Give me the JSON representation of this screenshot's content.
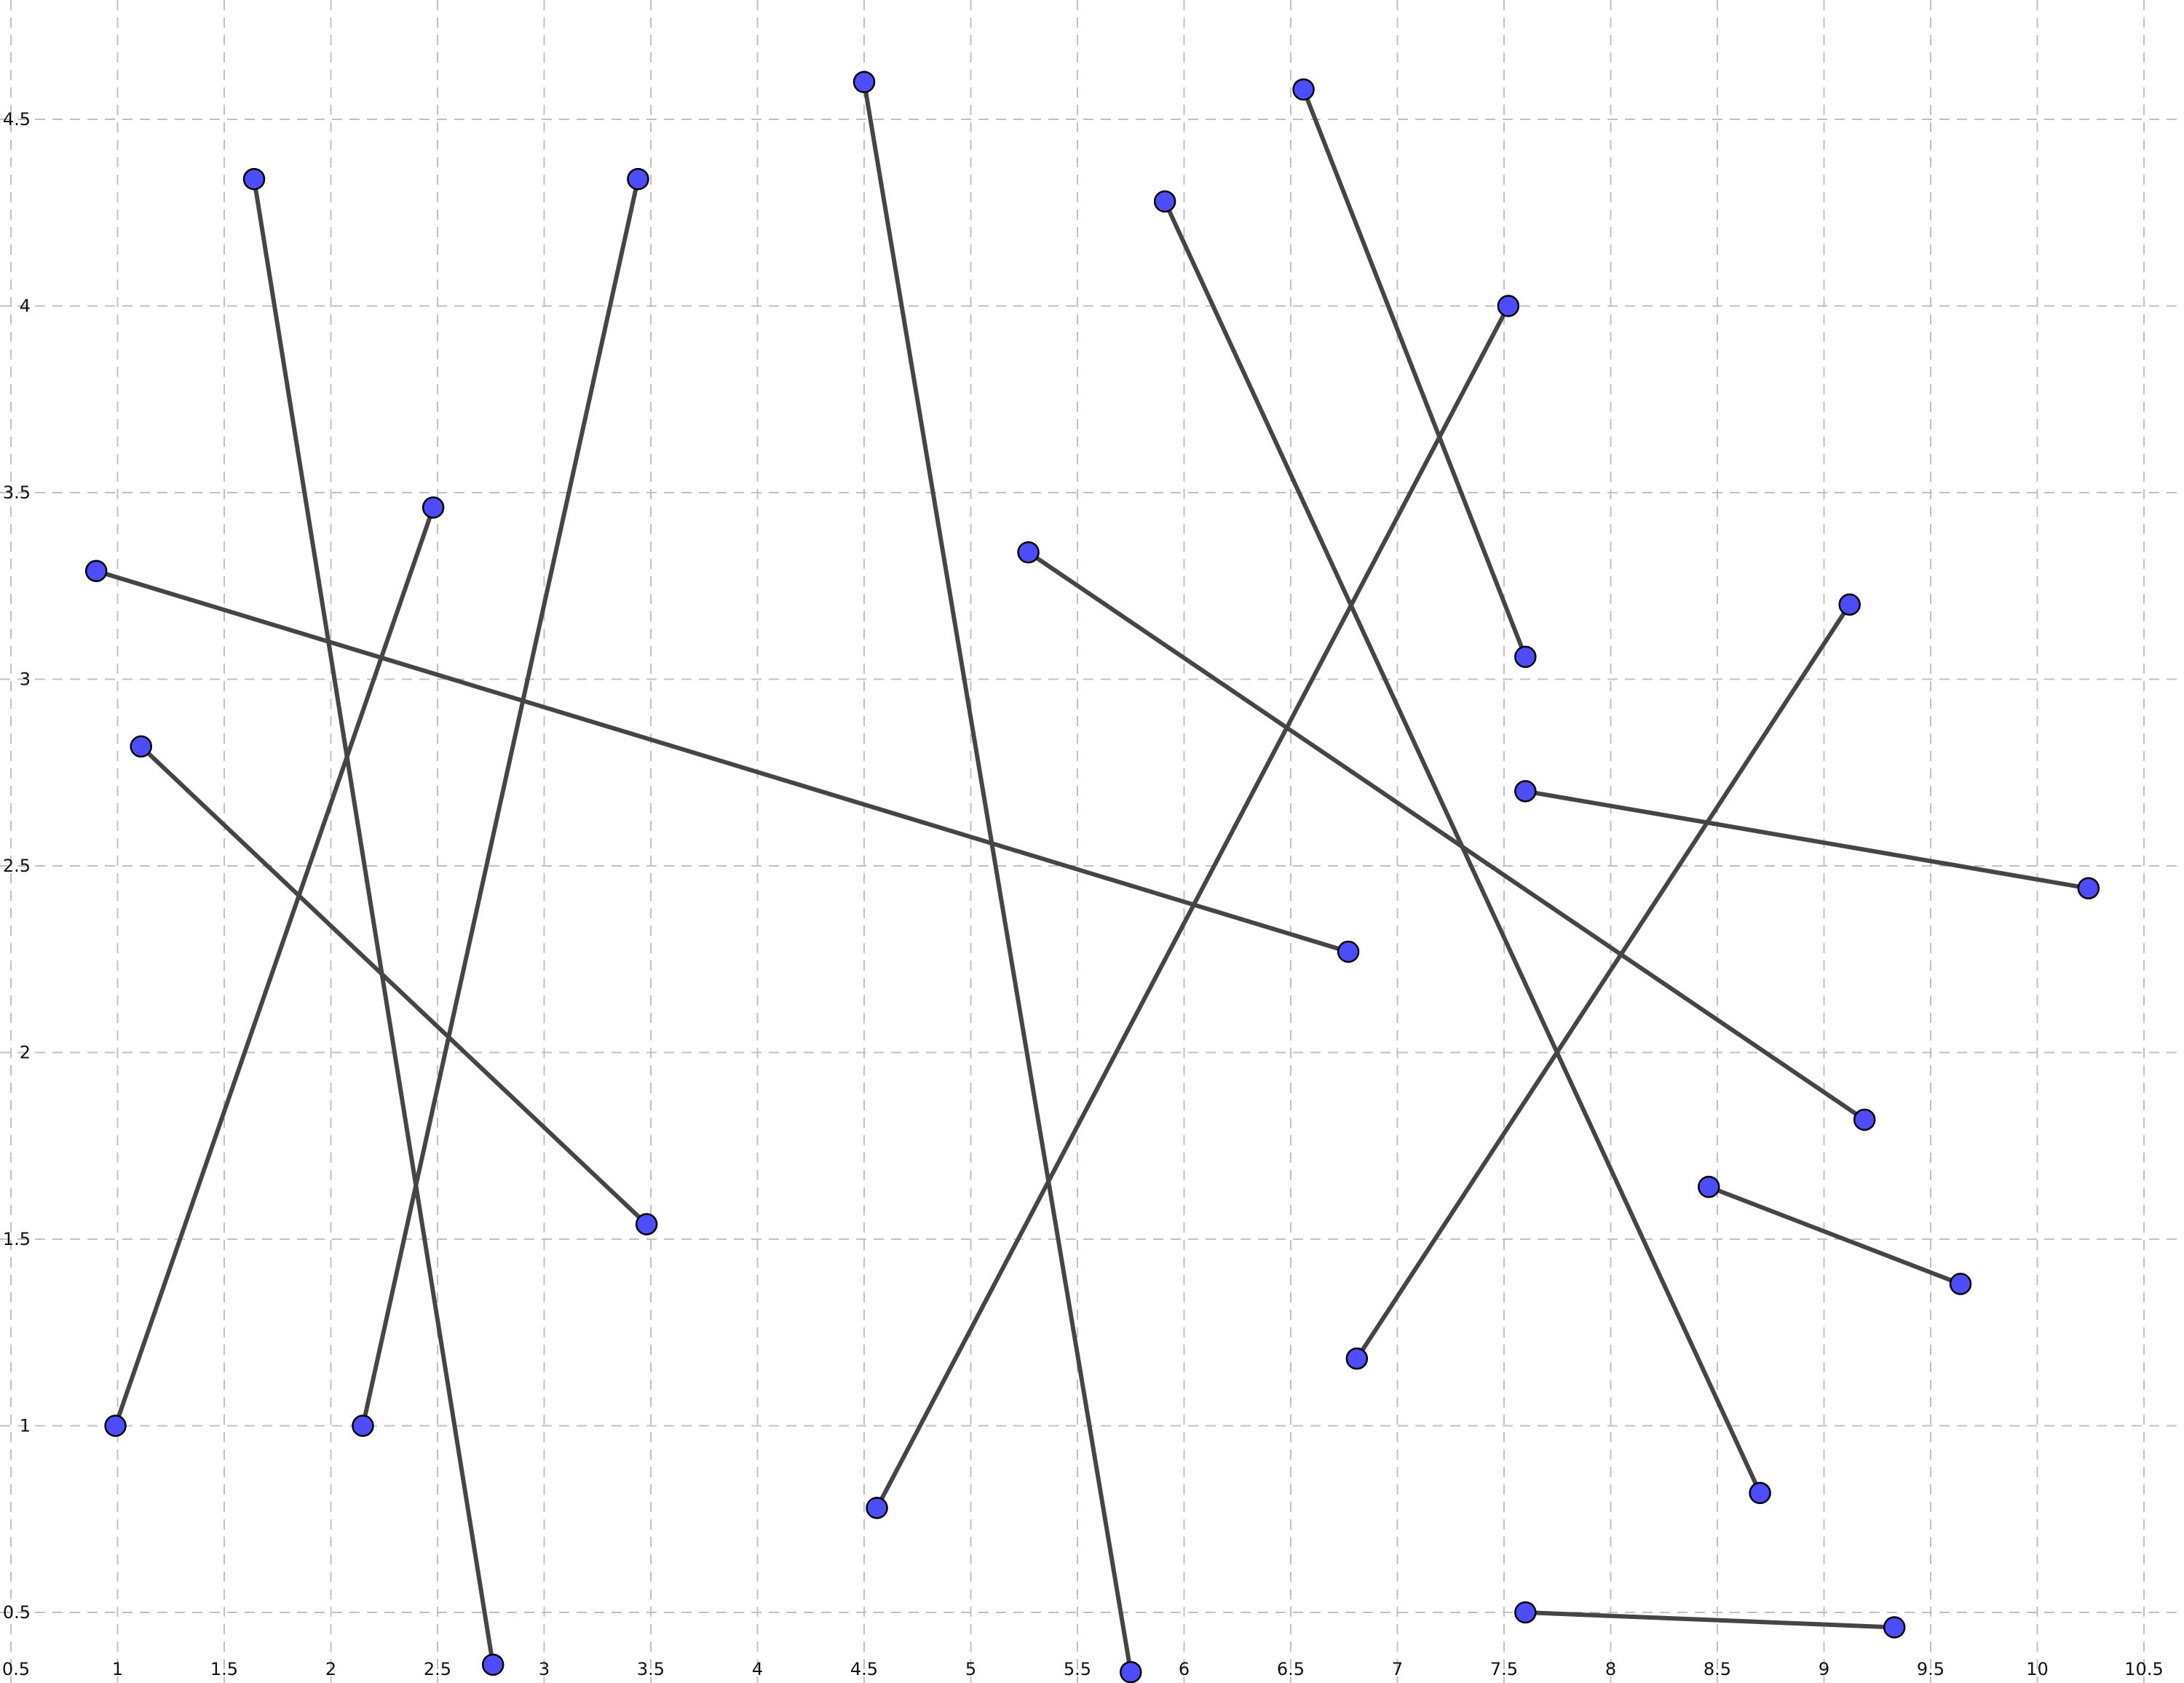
{
  "grid": {
    "x_range": [
      0.5,
      10.5
    ],
    "y_range": [
      0.25,
      4.75
    ],
    "x_ticks": [
      {
        "value": 0.5,
        "label": "0.5"
      },
      {
        "value": 1,
        "label": "1"
      },
      {
        "value": 1.5,
        "label": "1.5"
      },
      {
        "value": 2,
        "label": "2"
      },
      {
        "value": 2.5,
        "label": "2.5"
      },
      {
        "value": 3,
        "label": "3"
      },
      {
        "value": 3.5,
        "label": "3.5"
      },
      {
        "value": 4,
        "label": "4"
      },
      {
        "value": 4.5,
        "label": "4.5"
      },
      {
        "value": 5,
        "label": "5"
      },
      {
        "value": 5.5,
        "label": "5.5"
      },
      {
        "value": 6,
        "label": "6"
      },
      {
        "value": 6.5,
        "label": "6.5"
      },
      {
        "value": 7,
        "label": "7"
      },
      {
        "value": 7.5,
        "label": "7.5"
      },
      {
        "value": 8,
        "label": "8"
      },
      {
        "value": 8.5,
        "label": "8.5"
      },
      {
        "value": 9,
        "label": "9"
      },
      {
        "value": 9.5,
        "label": "9.5"
      },
      {
        "value": 10,
        "label": "10"
      },
      {
        "value": 10.5,
        "label": "10.5"
      }
    ],
    "y_ticks": [
      {
        "value": 0.5,
        "label": "0.5"
      },
      {
        "value": 1,
        "label": "1"
      },
      {
        "value": 1.5,
        "label": "1.5"
      },
      {
        "value": 2,
        "label": "2"
      },
      {
        "value": 2.5,
        "label": "2.5"
      },
      {
        "value": 3,
        "label": "3"
      },
      {
        "value": 3.5,
        "label": "3.5"
      },
      {
        "value": 4,
        "label": "4"
      },
      {
        "value": 4.5,
        "label": "4.5"
      }
    ],
    "line_color": "#c0c0c0",
    "dashed": true
  },
  "style": {
    "segment_color": "#454545",
    "point_fill": "#4d4dff",
    "point_stroke": "#000000"
  },
  "segments": [
    {
      "x1": 1.64,
      "y1": 4.34,
      "x2": 2.76,
      "y2": 0.36
    },
    {
      "x1": 0.99,
      "y1": 1.0,
      "x2": 2.48,
      "y2": 3.46
    },
    {
      "x1": 2.15,
      "y1": 1.0,
      "x2": 3.44,
      "y2": 4.34
    },
    {
      "x1": 1.11,
      "y1": 2.82,
      "x2": 3.48,
      "y2": 1.54
    },
    {
      "x1": 0.9,
      "y1": 3.29,
      "x2": 6.77,
      "y2": 2.27
    },
    {
      "x1": 4.5,
      "y1": 4.6,
      "x2": 5.75,
      "y2": 0.34
    },
    {
      "x1": 4.56,
      "y1": 0.78,
      "x2": 7.52,
      "y2": 4.0
    },
    {
      "x1": 5.91,
      "y1": 4.28,
      "x2": 8.7,
      "y2": 0.82
    },
    {
      "x1": 6.56,
      "y1": 4.58,
      "x2": 7.6,
      "y2": 3.06
    },
    {
      "x1": 5.27,
      "y1": 3.34,
      "x2": 9.19,
      "y2": 1.82
    },
    {
      "x1": 6.81,
      "y1": 1.18,
      "x2": 9.12,
      "y2": 3.2
    },
    {
      "x1": 7.6,
      "y1": 2.7,
      "x2": 10.24,
      "y2": 2.44
    },
    {
      "x1": 8.46,
      "y1": 1.64,
      "x2": 9.64,
      "y2": 1.38
    },
    {
      "x1": 7.6,
      "y1": 0.5,
      "x2": 9.33,
      "y2": 0.46
    }
  ]
}
